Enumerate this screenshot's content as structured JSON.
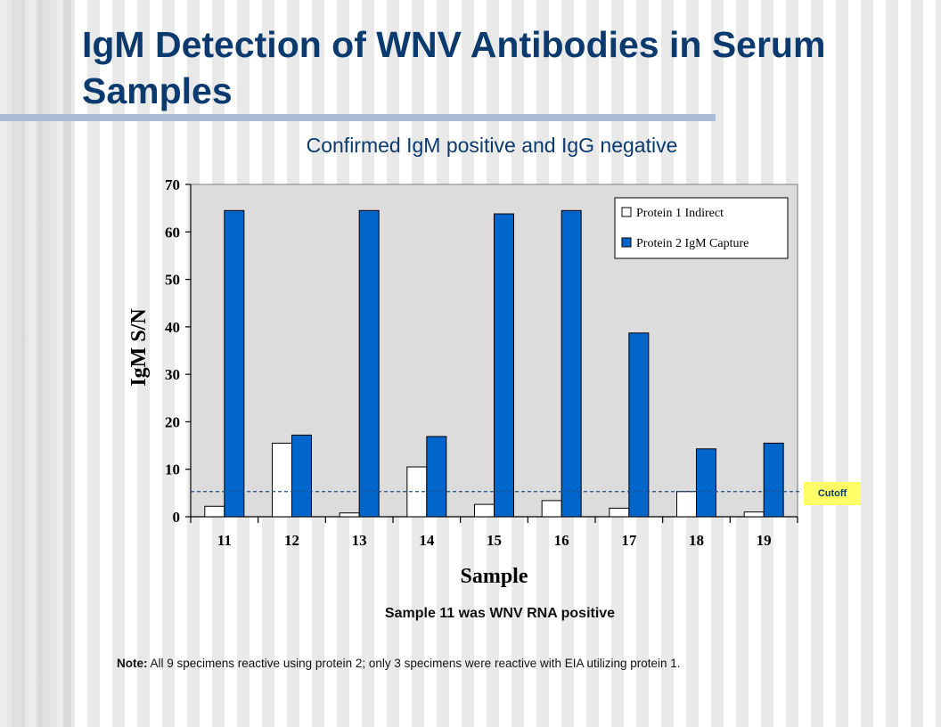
{
  "slide": {
    "title": "IgM Detection of WNV Antibodies in Serum Samples",
    "subtitle": "Confirmed IgM positive and IgG negative",
    "caption": "Sample 11 was WNV RNA positive",
    "note_label": "Note:",
    "note_text": " All 9 specimens reactive using protein 2; only 3 specimens were reactive with EIA utilizing protein 1.",
    "cutoff_label": "Cutoff"
  },
  "chart_data": {
    "type": "bar",
    "categories": [
      "11",
      "12",
      "13",
      "14",
      "15",
      "16",
      "17",
      "18",
      "19"
    ],
    "series": [
      {
        "name": "Protein 1 Indirect",
        "values": [
          2.2,
          15.5,
          0.8,
          10.5,
          2.6,
          3.4,
          1.8,
          5.3,
          1.0
        ],
        "color": "#ffffff"
      },
      {
        "name": "Protein 2 IgM Capture",
        "values": [
          64.5,
          17.2,
          64.5,
          16.9,
          63.8,
          64.5,
          38.7,
          14.3,
          15.5
        ],
        "color": "#0066cc"
      }
    ],
    "xlabel": "Sample",
    "ylabel": "IgM S/N",
    "ylim": [
      0,
      70
    ],
    "yticks": [
      0,
      10,
      20,
      30,
      40,
      50,
      60,
      70
    ],
    "cutoff": 5.3,
    "legend": "top-right",
    "plot_background": "#dcdcdc"
  }
}
